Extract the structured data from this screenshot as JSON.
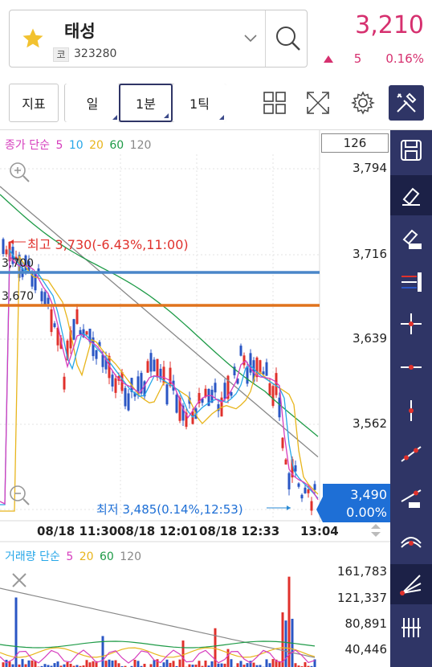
{
  "header": {
    "stock_name": "태성",
    "code_badge": "코",
    "stock_code": "323280",
    "price": "3,210",
    "change": "5",
    "change_pct": "0.16%"
  },
  "toolbar": {
    "indicator_label": "지표",
    "period_day": "일",
    "period_1min": "1분",
    "period_1tick": "1틱"
  },
  "price_chart": {
    "legend": {
      "title": "종가 단순",
      "ma": [
        {
          "label": "5",
          "color": "#d63dbd"
        },
        {
          "label": "10",
          "color": "#27a7e8"
        },
        {
          "label": "20",
          "color": "#e8b51c"
        },
        {
          "label": "60",
          "color": "#1e9b47"
        },
        {
          "label": "120",
          "color": "#888888"
        }
      ]
    },
    "period_count": "126",
    "y_ticks": [
      "3,794",
      "3,716",
      "3,639",
      "3,562"
    ],
    "high_label": "최고 3,730(-6.43%,11:00)",
    "low_label": "최저 3,485(0.14%,12:53)",
    "hline_1": "3,700",
    "hline_2": "3,670",
    "current_price": "3,490",
    "current_pct": "0.00%",
    "x_ticks": [
      "08/18 11:30",
      "08/18 12:01",
      "08/18 12:33",
      "13:04"
    ]
  },
  "volume_chart": {
    "legend": {
      "title": "거래량 단순",
      "ma": [
        {
          "label": "5",
          "color": "#d63dbd"
        },
        {
          "label": "20",
          "color": "#e8b51c"
        },
        {
          "label": "60",
          "color": "#1e9b47"
        },
        {
          "label": "120",
          "color": "#888888"
        }
      ]
    },
    "y_ticks": [
      "161,783",
      "121,337",
      "80,891",
      "40,446"
    ]
  },
  "colors": {
    "accent_red": "#d6306f",
    "navy": "#2f3566",
    "up": "#e0312c",
    "down": "#2a56c4",
    "hline_blue": "#4a86c8",
    "hline_orange": "#e0731d"
  }
}
